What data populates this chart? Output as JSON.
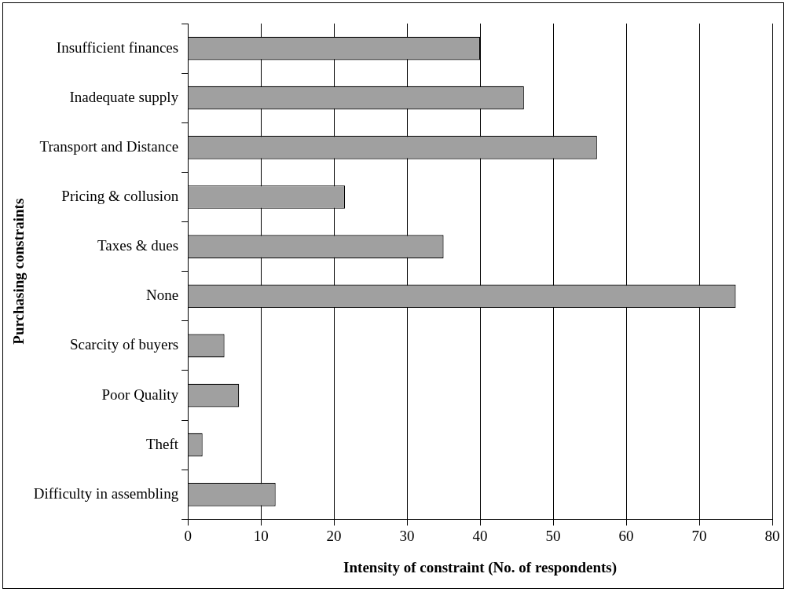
{
  "chart_data": {
    "type": "bar",
    "orientation": "horizontal",
    "xlabel": "Intensity of constraint (No. of respondents)",
    "ylabel": "Purchasing constraints",
    "categories": [
      "Insufficient finances",
      "Inadequate supply",
      "Transport and Distance",
      "Pricing & collusion",
      "Taxes & dues",
      "None",
      "Scarcity of buyers",
      "Poor Quality",
      "Theft",
      "Difficulty in assembling"
    ],
    "values": [
      40,
      46,
      56,
      21.5,
      35,
      75,
      5,
      7,
      2,
      12
    ],
    "color": "#a0a0a0",
    "xlim": [
      0,
      80
    ],
    "xticks": [
      0,
      10,
      20,
      30,
      40,
      50,
      60,
      70,
      80
    ],
    "grid": "x",
    "legend": false
  }
}
